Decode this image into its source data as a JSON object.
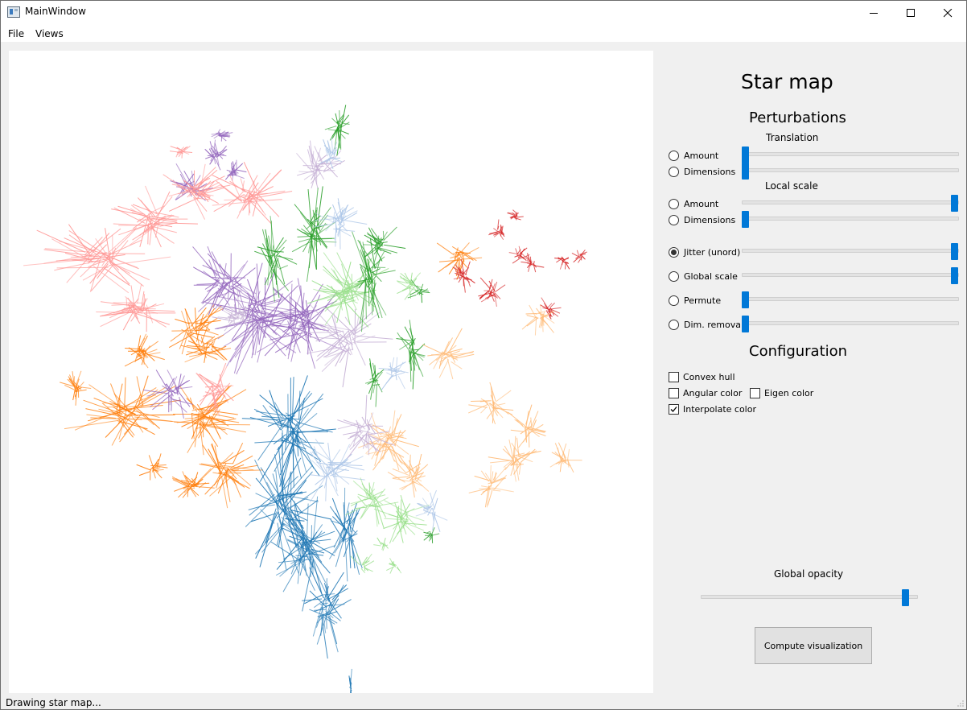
{
  "window": {
    "title": "MainWindow"
  },
  "menu": {
    "file": "File",
    "views": "Views"
  },
  "panel": {
    "title": "Star map",
    "perturbations_heading": "Perturbations",
    "translation_heading": "Translation",
    "local_scale_heading": "Local scale",
    "configuration_heading": "Configuration",
    "global_opacity_label": "Global opacity",
    "compute_button": "Compute visualization"
  },
  "perturbation_controls": [
    {
      "label": "Amount",
      "checked": false,
      "slider_value": 0
    },
    {
      "label": "Dimensions",
      "checked": false,
      "slider_value": 0
    },
    {
      "label": "Amount",
      "checked": false,
      "slider_value": 1
    },
    {
      "label": "Dimensions",
      "checked": false,
      "slider_value": 0
    },
    {
      "label": "Jitter (unord)",
      "checked": true,
      "slider_value": 1
    },
    {
      "label": "Global scale",
      "checked": false,
      "slider_value": 1
    },
    {
      "label": "Permute",
      "checked": false,
      "slider_value": 0
    },
    {
      "label": "Dim. removal",
      "checked": false,
      "slider_value": 0
    }
  ],
  "configuration": {
    "convex_hull": {
      "label": "Convex hull",
      "checked": false
    },
    "angular_color": {
      "label": "Angular color",
      "checked": false
    },
    "eigen_color": {
      "label": "Eigen color",
      "checked": false
    },
    "interpolate_color": {
      "label": "Interpolate color",
      "checked": true
    }
  },
  "global_opacity_value": 0.96,
  "status": "Drawing star map...",
  "accent_color": "#0078d7",
  "star_map": {
    "palette": {
      "blue": "#1f77b4",
      "light_blue": "#aec7e8",
      "orange": "#ff7f0e",
      "light_orange": "#ffbb78",
      "green": "#2ca02c",
      "light_green": "#98df8a",
      "red": "#d62728",
      "pink": "#ff9896",
      "purple": "#9467bd",
      "lavender": "#c5b0d5"
    }
  }
}
